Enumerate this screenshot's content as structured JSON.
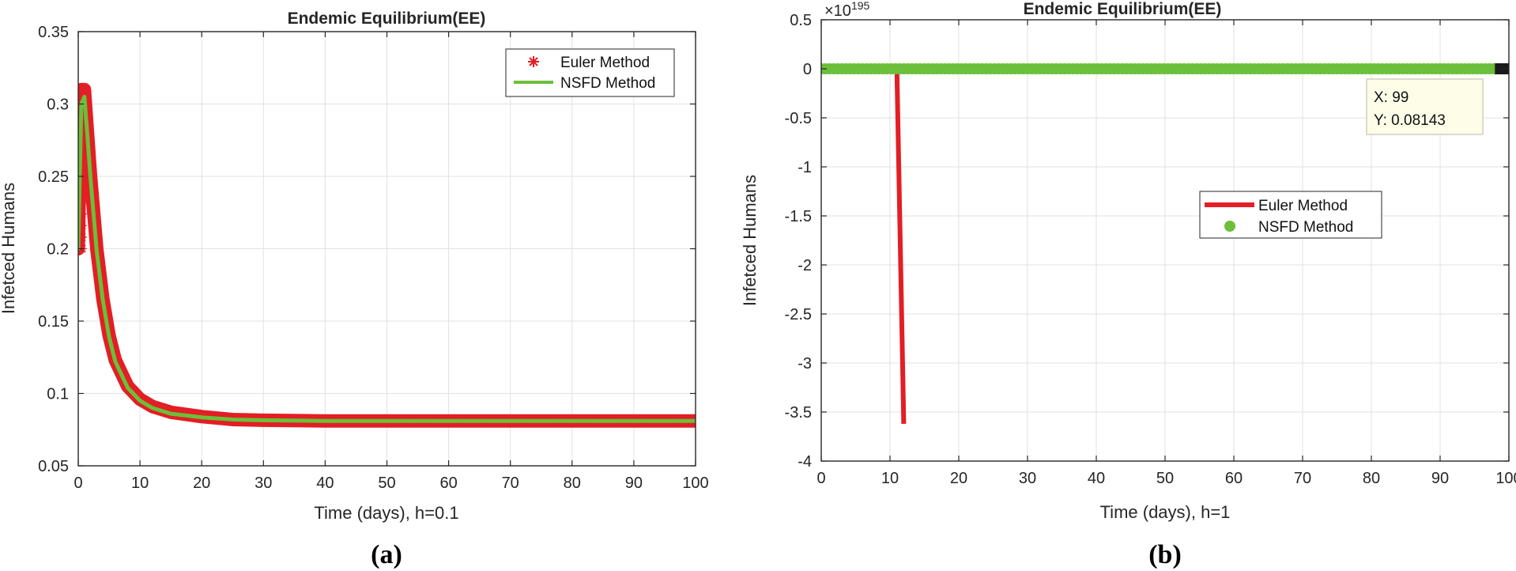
{
  "colors": {
    "euler": "#e31e24",
    "nsfd": "#6bbf3a",
    "axis": "#262626",
    "grid": "#e2e2e2"
  },
  "chart_data": [
    {
      "panel": "a",
      "type": "line",
      "title": "Endemic Equilibrium(EE)",
      "xlabel": "Time (days), h=0.1",
      "ylabel": "Infetced Humans",
      "caption": "(a)",
      "xlim": [
        0,
        100
      ],
      "ylim": [
        0.05,
        0.35
      ],
      "xticks": [
        0,
        10,
        20,
        30,
        40,
        50,
        60,
        70,
        80,
        90,
        100
      ],
      "xtick_labels": [
        "0",
        "10",
        "20",
        "30",
        "40",
        "50",
        "60",
        "70",
        "80",
        "90",
        "100"
      ],
      "yticks": [
        0.05,
        0.1,
        0.15,
        0.2,
        0.25,
        0.3,
        0.35
      ],
      "ytick_labels": [
        "0.05",
        "0.1",
        "0.15",
        "0.2",
        "0.25",
        "0.3",
        "0.35"
      ],
      "grid": true,
      "legend": "top-right",
      "series": [
        {
          "name": "Euler Method",
          "style": "asterisk-markers",
          "color": "#e31e24",
          "x": [
            0,
            0.5,
            1,
            1.5,
            2,
            3,
            4,
            5,
            6,
            8,
            10,
            12,
            15,
            20,
            25,
            30,
            40,
            50,
            60,
            70,
            80,
            90,
            100
          ],
          "y": [
            0.2,
            0.31,
            0.31,
            0.28,
            0.25,
            0.2,
            0.165,
            0.14,
            0.123,
            0.105,
            0.096,
            0.091,
            0.087,
            0.084,
            0.082,
            0.0815,
            0.081,
            0.081,
            0.081,
            0.081,
            0.081,
            0.081,
            0.081
          ]
        },
        {
          "name": "NSFD Method",
          "style": "line",
          "color": "#6bbf3a",
          "x": [
            0,
            0.5,
            1,
            1.5,
            2,
            3,
            4,
            5,
            6,
            8,
            10,
            12,
            15,
            20,
            25,
            30,
            40,
            50,
            60,
            70,
            80,
            90,
            100
          ],
          "y": [
            0.2,
            0.3,
            0.305,
            0.277,
            0.248,
            0.198,
            0.164,
            0.139,
            0.122,
            0.104,
            0.095,
            0.09,
            0.086,
            0.0835,
            0.082,
            0.0815,
            0.081,
            0.081,
            0.081,
            0.081,
            0.081,
            0.081,
            0.081
          ]
        }
      ]
    },
    {
      "panel": "b",
      "type": "line",
      "title": "Endemic Equilibrium(EE)",
      "xlabel": "Time (days), h=1",
      "ylabel": "Infetced Humans",
      "caption": "(b)",
      "exponent_label": "×10",
      "exponent_power": "195",
      "xlim": [
        0,
        100
      ],
      "ylim": [
        -4,
        0.5
      ],
      "xticks": [
        0,
        10,
        20,
        30,
        40,
        50,
        60,
        70,
        80,
        90,
        100
      ],
      "xtick_labels": [
        "0",
        "10",
        "20",
        "30",
        "40",
        "50",
        "60",
        "70",
        "80",
        "90",
        "100"
      ],
      "yticks": [
        -4,
        -3.5,
        -3,
        -2.5,
        -2,
        -1.5,
        -1,
        -0.5,
        0,
        0.5
      ],
      "ytick_labels": [
        "-4",
        "-3.5",
        "-3",
        "-2.5",
        "-2",
        "-1.5",
        "-1",
        "-0.5",
        "0",
        "0.5"
      ],
      "grid": true,
      "legend": "center-right",
      "datatip": {
        "x_text": "X: 99",
        "y_text": "Y: 0.08143",
        "x": 99,
        "y": 0
      },
      "series": [
        {
          "name": "Euler Method",
          "style": "line",
          "color": "#e31e24",
          "x": [
            0,
            10,
            11,
            12
          ],
          "y": [
            0,
            0,
            0,
            -3.62
          ]
        },
        {
          "name": "NSFD Method",
          "style": "filled-markers",
          "color": "#6bbf3a",
          "x_range": [
            0,
            98
          ],
          "x_step": 0.6,
          "y_constant": 0
        }
      ]
    }
  ]
}
